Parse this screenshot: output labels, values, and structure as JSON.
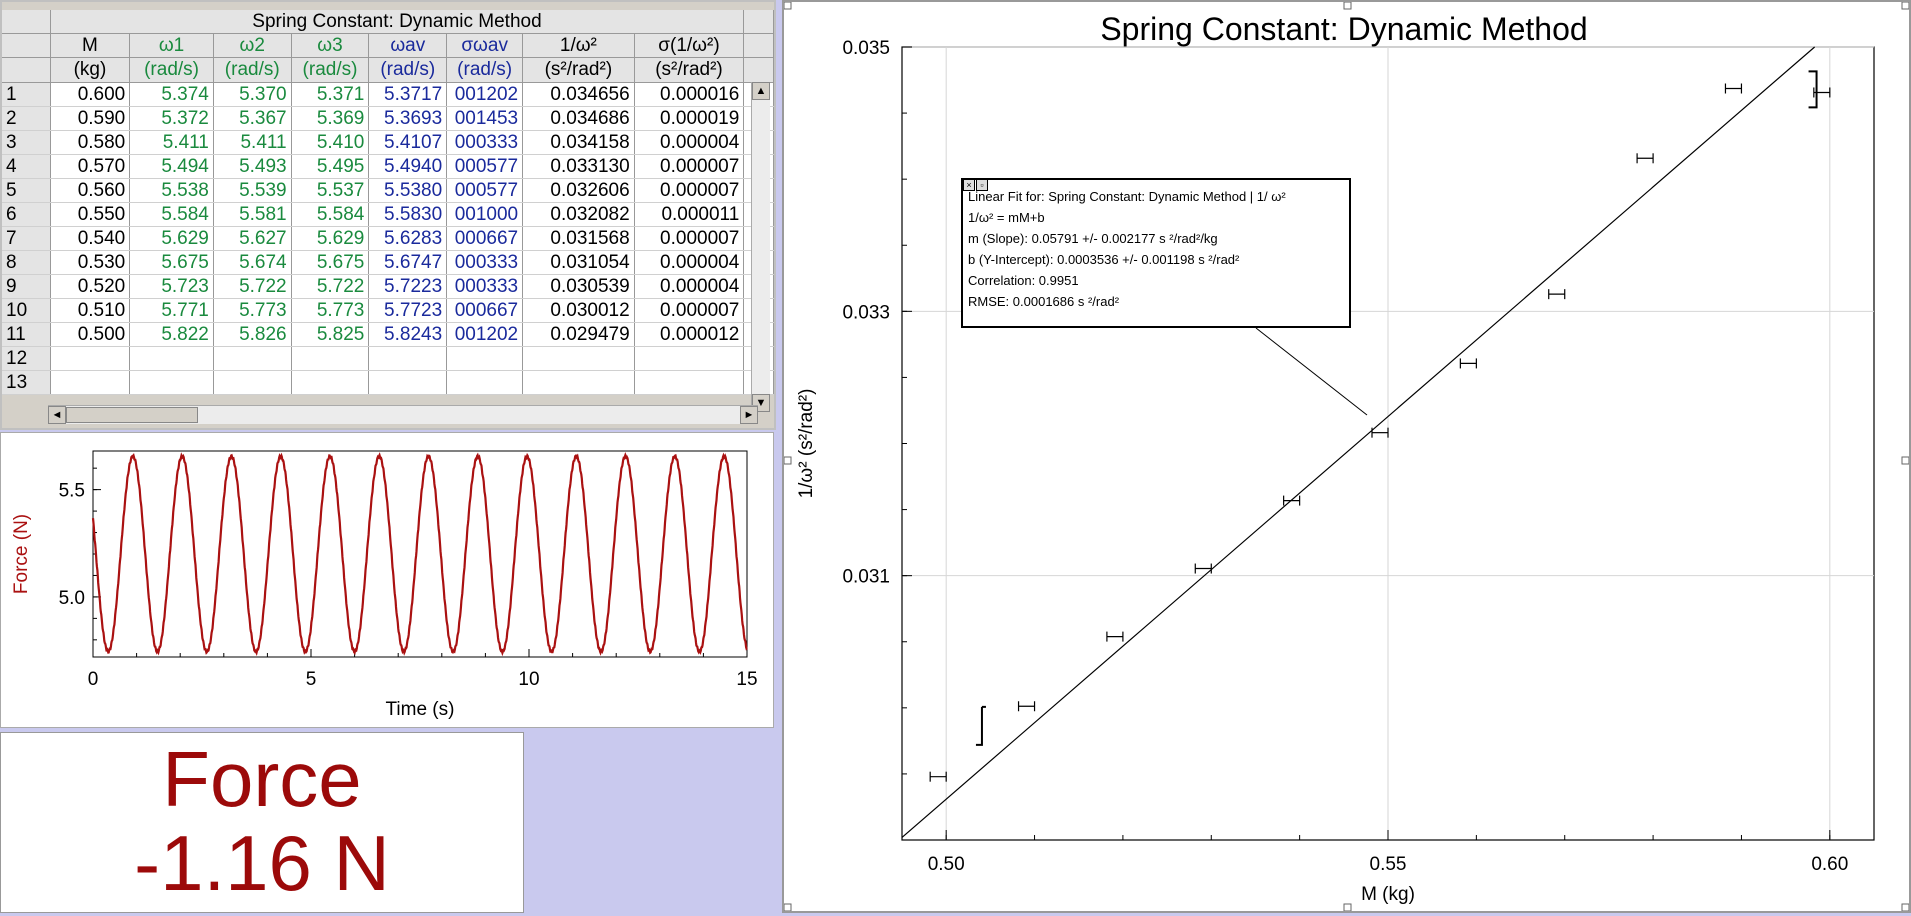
{
  "table": {
    "title": "Spring Constant: Dynamic Method",
    "columns": [
      {
        "name": "M",
        "unit": "(kg)",
        "color": "black"
      },
      {
        "name": "ω1",
        "unit": "(rad/s)",
        "color": "green"
      },
      {
        "name": "ω2",
        "unit": "(rad/s)",
        "color": "green"
      },
      {
        "name": "ω3",
        "unit": "(rad/s)",
        "color": "green"
      },
      {
        "name": "ωav",
        "unit": "(rad/s)",
        "color": "blue"
      },
      {
        "name": "σωav",
        "unit": "(rad/s)",
        "color": "blue"
      },
      {
        "name": "1/ω²",
        "unit": "(s²/rad²)",
        "color": "black"
      },
      {
        "name": "σ(1/ω²)",
        "unit": "(s²/rad²)",
        "color": "black"
      }
    ],
    "rows": [
      [
        "1",
        "0.600",
        "5.374",
        "5.370",
        "5.371",
        "5.3717",
        "001202",
        "0.034656",
        "0.000016"
      ],
      [
        "2",
        "0.590",
        "5.372",
        "5.367",
        "5.369",
        "5.3693",
        "001453",
        "0.034686",
        "0.000019"
      ],
      [
        "3",
        "0.580",
        "5.411",
        "5.411",
        "5.410",
        "5.4107",
        "000333",
        "0.034158",
        "0.000004"
      ],
      [
        "4",
        "0.570",
        "5.494",
        "5.493",
        "5.495",
        "5.4940",
        "000577",
        "0.033130",
        "0.000007"
      ],
      [
        "5",
        "0.560",
        "5.538",
        "5.539",
        "5.537",
        "5.5380",
        "000577",
        "0.032606",
        "0.000007"
      ],
      [
        "6",
        "0.550",
        "5.584",
        "5.581",
        "5.584",
        "5.5830",
        "001000",
        "0.032082",
        "0.000011"
      ],
      [
        "7",
        "0.540",
        "5.629",
        "5.627",
        "5.629",
        "5.6283",
        "000667",
        "0.031568",
        "0.000007"
      ],
      [
        "8",
        "0.530",
        "5.675",
        "5.674",
        "5.675",
        "5.6747",
        "000333",
        "0.031054",
        "0.000004"
      ],
      [
        "9",
        "0.520",
        "5.723",
        "5.722",
        "5.722",
        "5.7223",
        "000333",
        "0.030539",
        "0.000004"
      ],
      [
        "10",
        "0.510",
        "5.771",
        "5.773",
        "5.773",
        "5.7723",
        "000667",
        "0.030012",
        "0.000007"
      ],
      [
        "11",
        "0.500",
        "5.822",
        "5.826",
        "5.825",
        "5.8243",
        "001202",
        "0.029479",
        "0.000012"
      ],
      [
        "12",
        "",
        "",
        "",
        "",
        "",
        "",
        "",
        ""
      ],
      [
        "13",
        "",
        "",
        "",
        "",
        "",
        "",
        "",
        ""
      ]
    ]
  },
  "meter": {
    "name": "Force",
    "value": "-1.16 N",
    "color": "#9c0a0a"
  },
  "fit_box": {
    "line1": "Linear Fit for: Spring Constant: Dynamic Method | 1/  ω²",
    "line2": "1/ω² = mM+b",
    "line3": "m (Slope): 0.05791 +/- 0.002177 s  ²/rad²/kg",
    "line4": "b (Y-Intercept): 0.0003536 +/- 0.001198 s  ²/rad²",
    "line5": "Correlation: 0.9951",
    "line6": "RMSE: 0.0001686 s ²/rad²"
  },
  "chart_data": [
    {
      "type": "scatter",
      "title": "Spring Constant: Dynamic Method",
      "xlabel": "M (kg)",
      "ylabel": "1/ω² (s²/rad²)",
      "xlim": [
        0.495,
        0.605
      ],
      "ylim": [
        0.029,
        0.035
      ],
      "x_ticks": [
        "0.50",
        "0.55",
        "0.60"
      ],
      "y_ticks": [
        "0.031",
        "0.033",
        "0.035"
      ],
      "grid": true,
      "points": [
        {
          "x": 0.6,
          "y": 0.034656
        },
        {
          "x": 0.59,
          "y": 0.034686
        },
        {
          "x": 0.58,
          "y": 0.034158
        },
        {
          "x": 0.57,
          "y": 0.03313
        },
        {
          "x": 0.56,
          "y": 0.032606
        },
        {
          "x": 0.55,
          "y": 0.032082
        },
        {
          "x": 0.54,
          "y": 0.031568
        },
        {
          "x": 0.53,
          "y": 0.031054
        },
        {
          "x": 0.52,
          "y": 0.030539
        },
        {
          "x": 0.51,
          "y": 0.030012
        },
        {
          "x": 0.5,
          "y": 0.029479
        }
      ],
      "fit": {
        "slope": 0.05791,
        "intercept": 0.0003536
      },
      "line_color": "#000000"
    },
    {
      "type": "line",
      "xlabel": "Time (s)",
      "ylabel": "Force (N)",
      "xlim": [
        0,
        15
      ],
      "ylim": [
        4.72,
        5.68
      ],
      "x_ticks": [
        "0",
        "5",
        "10",
        "15"
      ],
      "y_ticks": [
        "5.0",
        "5.5"
      ],
      "wave": {
        "mean": 5.2,
        "amplitude": 0.455,
        "period": 1.13,
        "phase_zero_at": 0.35
      },
      "line_color": "#aa1111"
    }
  ]
}
